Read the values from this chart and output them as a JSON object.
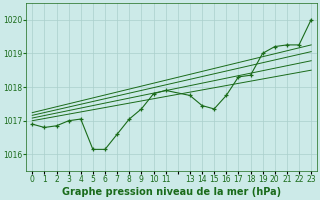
{
  "title": "Graphe pression niveau de la mer (hPa)",
  "bg_color": "#cceae8",
  "grid_color": "#aacfcc",
  "line_color": "#1a6b1a",
  "x_values": [
    0,
    1,
    2,
    3,
    4,
    5,
    6,
    7,
    8,
    9,
    10,
    11,
    13,
    14,
    15,
    16,
    17,
    18,
    19,
    20,
    21,
    22,
    23
  ],
  "main_data": [
    1016.9,
    1016.8,
    1016.85,
    1017.0,
    1017.05,
    1016.15,
    1016.15,
    1016.6,
    1017.05,
    1017.35,
    1017.8,
    1017.9,
    1017.75,
    1017.45,
    1017.35,
    1017.75,
    1018.3,
    1018.35,
    1019.0,
    1019.2,
    1019.25,
    1019.25,
    1020.0
  ],
  "trend_starts": [
    1017.0,
    1017.08,
    1017.16,
    1017.24
  ],
  "trend_ends": [
    1018.5,
    1018.78,
    1019.05,
    1019.25
  ],
  "trend_x_start": 0,
  "trend_x_end": 23,
  "ylim": [
    1015.5,
    1020.5
  ],
  "yticks": [
    1016,
    1017,
    1018,
    1019,
    1020
  ],
  "xlim_min": -0.5,
  "xlim_max": 23.5,
  "fontsize_title": 7,
  "fontsize_ticks": 5.5
}
